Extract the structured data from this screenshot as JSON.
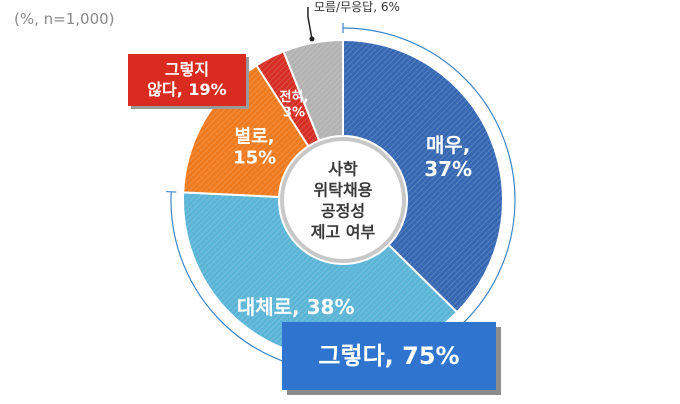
{
  "note": "(%, n=1,000)",
  "chart_data": {
    "type": "pie",
    "center_label": [
      "사학",
      "위탁채용",
      "공정성",
      "제고 여부"
    ],
    "slices": [
      {
        "name": "매우",
        "label": [
          "매우,",
          "37%"
        ],
        "value": 37,
        "color": "#3567b3"
      },
      {
        "name": "대체로",
        "label": [
          "대체로, 38%"
        ],
        "value": 38,
        "color": "#5ab4d6"
      },
      {
        "name": "별로",
        "label": [
          "별로,",
          "15%"
        ],
        "value": 15,
        "color": "#ef7a1e"
      },
      {
        "name": "전혀",
        "label": [
          "전혀,",
          "3%"
        ],
        "value": 3,
        "color": "#d62e24"
      },
      {
        "name": "모름/무응답",
        "label": [
          "모름/무응답, 6%"
        ],
        "value": 6,
        "color": "#b3b3b3"
      }
    ],
    "groups": {
      "negative": {
        "lines": [
          "그렇지",
          "않다, 19%"
        ],
        "value": 19
      },
      "positive": {
        "lines": [
          "그렇다, 75%"
        ],
        "value": 75
      }
    }
  }
}
